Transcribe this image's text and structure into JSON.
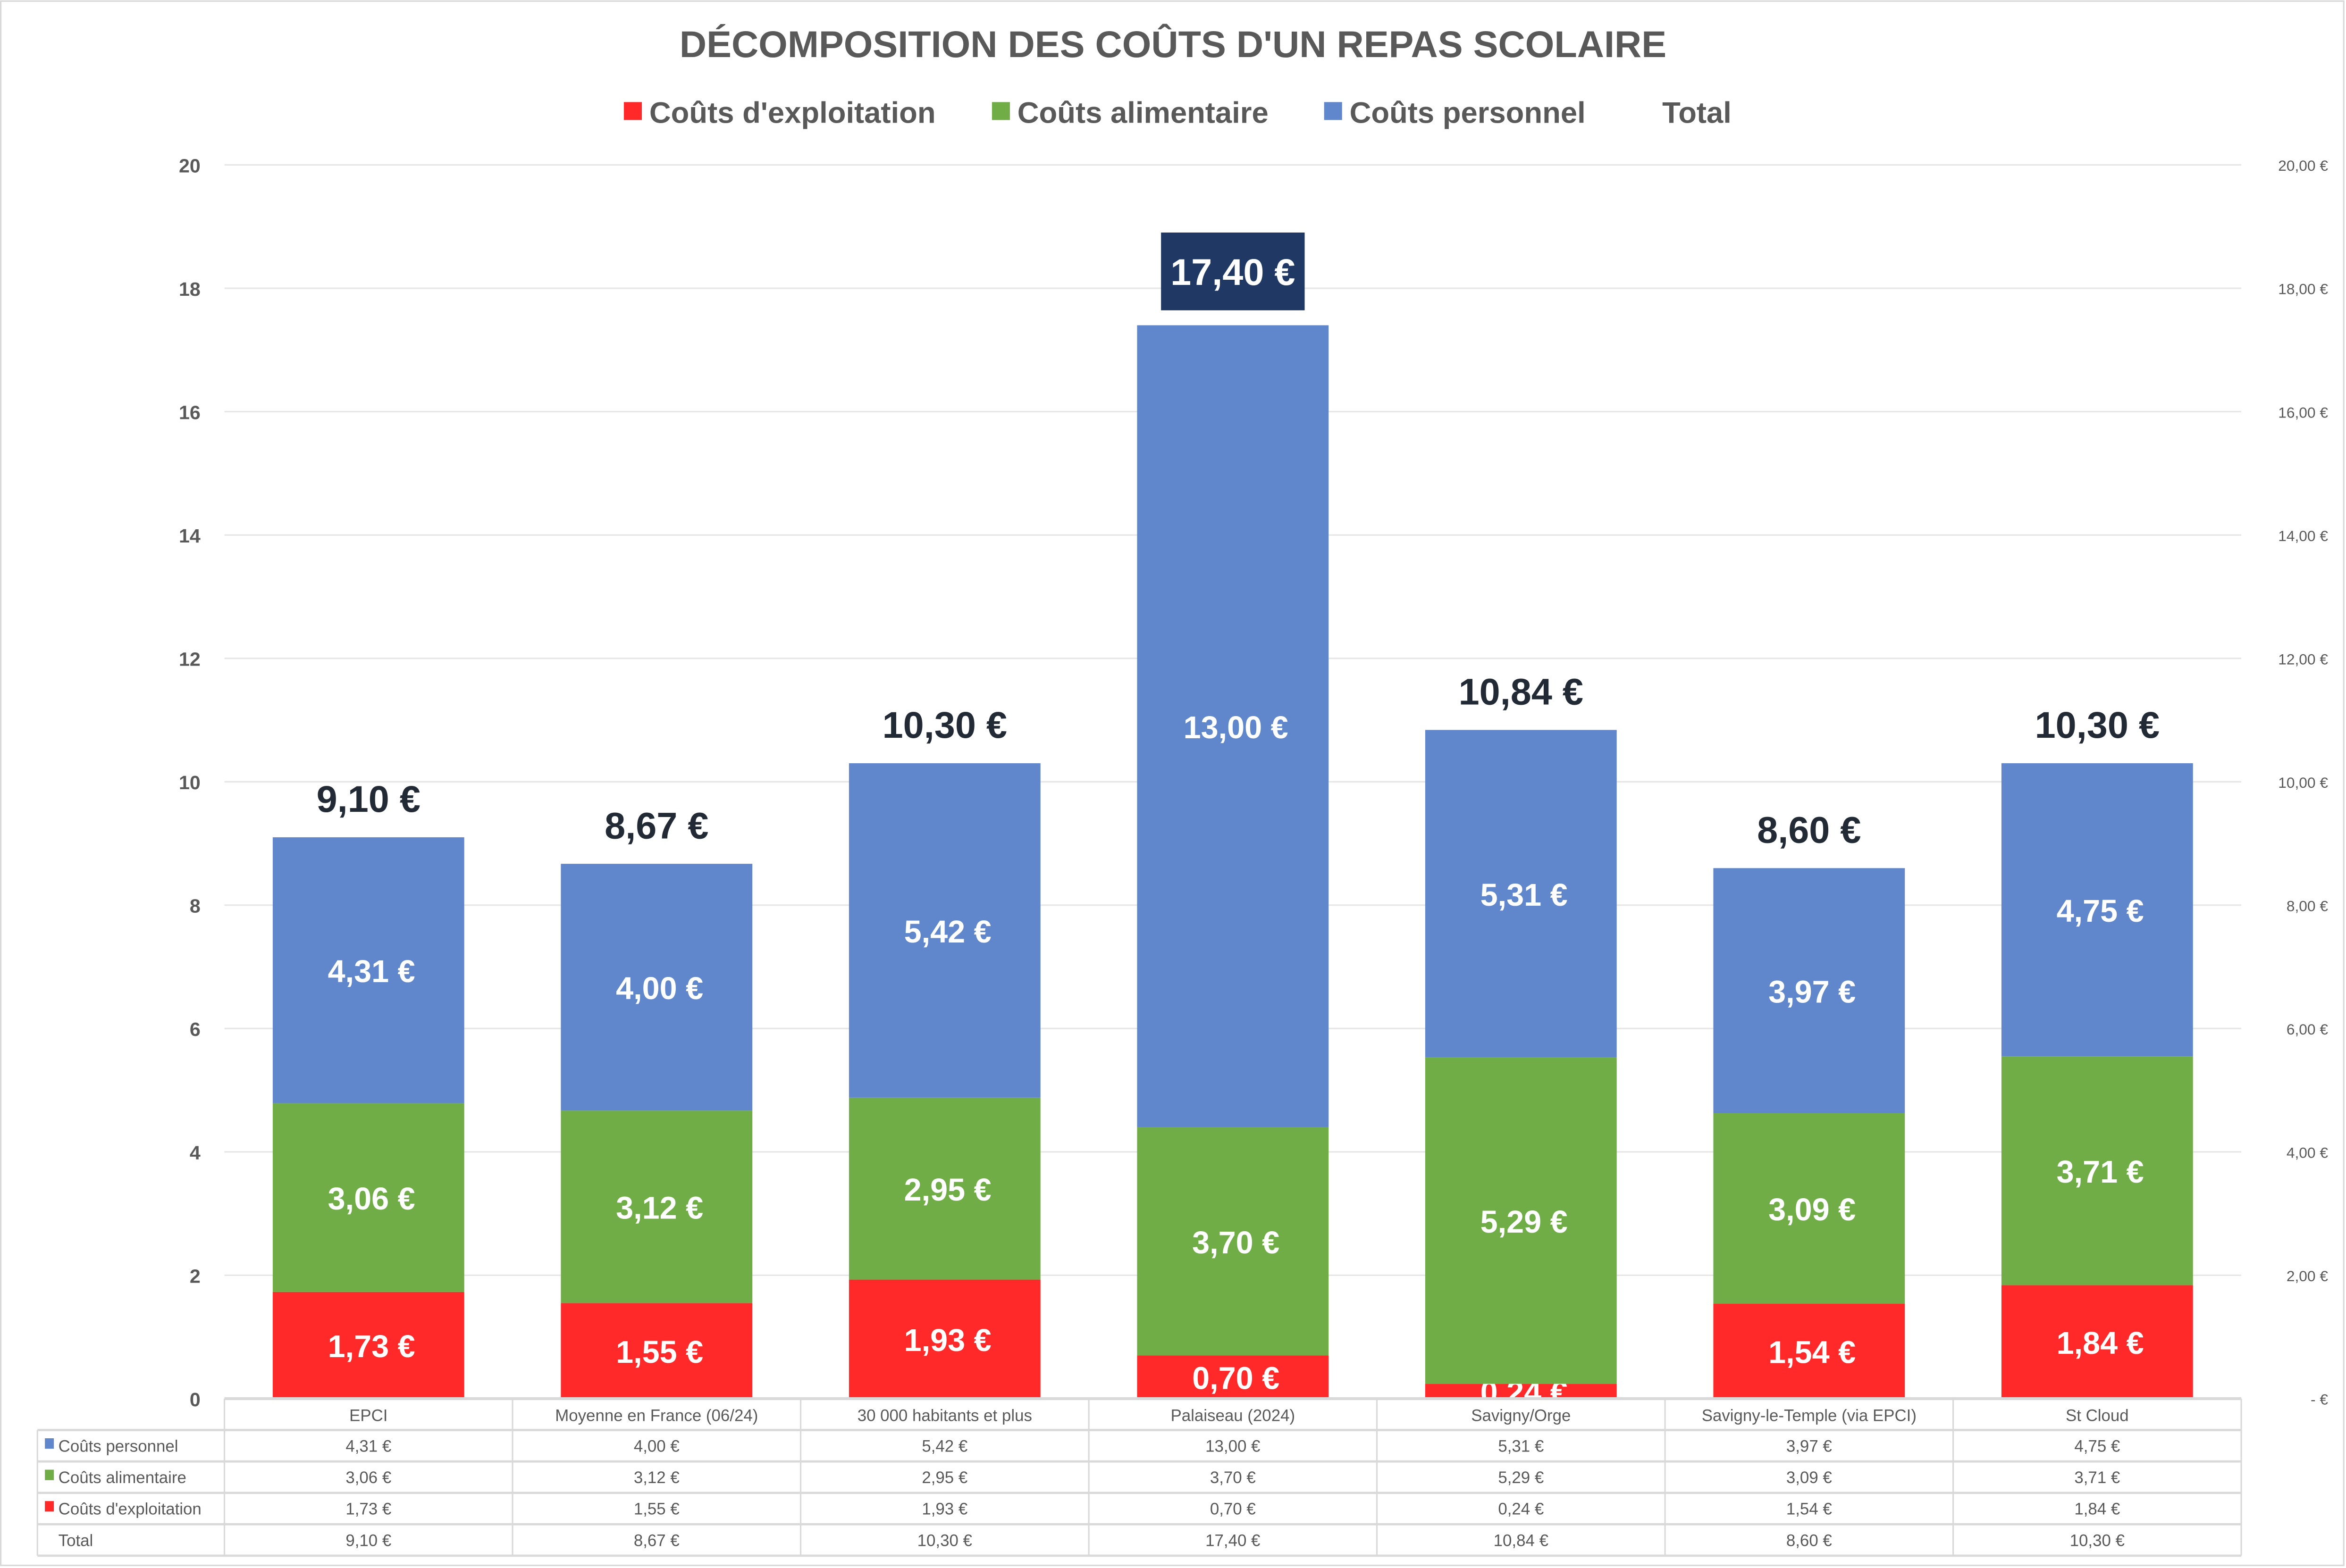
{
  "chart_data": {
    "type": "bar",
    "stacked": true,
    "title": "DÉCOMPOSITION DES COÛTS D'UN REPAS SCOLAIRE",
    "categories": [
      "EPCI",
      "Moyenne en France (06/24)",
      "30 000 habitants et plus",
      "Palaiseau (2024)",
      "Savigny/Orge",
      "Savigny-le-Temple (via EPCI)",
      "St Cloud"
    ],
    "series": [
      {
        "name": "Coûts d'exploitation",
        "color": "#ff2929",
        "values": [
          1.73,
          1.55,
          1.93,
          0.7,
          0.24,
          1.54,
          1.84
        ],
        "labels": [
          "1,73 €",
          "1,55 €",
          "1,93 €",
          "0,70 €",
          "0,24 €",
          "1,54 €",
          "1,84 €"
        ]
      },
      {
        "name": "Coûts alimentaire",
        "color": "#70ad47",
        "values": [
          3.06,
          3.12,
          2.95,
          3.7,
          5.29,
          3.09,
          3.71
        ],
        "labels": [
          "3,06 €",
          "3,12 €",
          "2,95 €",
          "3,70 €",
          "5,29 €",
          "3,09 €",
          "3,71 €"
        ]
      },
      {
        "name": "Coûts personnel",
        "color": "#6086cc",
        "values": [
          4.31,
          4.0,
          5.42,
          13.0,
          5.31,
          3.97,
          4.75
        ],
        "labels": [
          "4,31 €",
          "4,00 €",
          "5,42 €",
          "13,00 €",
          "5,31 €",
          "3,97 €",
          "4,75 €"
        ]
      }
    ],
    "total": {
      "name": "Total",
      "values": [
        9.1,
        8.67,
        10.3,
        17.4,
        10.84,
        8.6,
        10.3
      ],
      "labels": [
        "9,10 €",
        "8,67 €",
        "10,30 €",
        "17,40 €",
        "10,84 €",
        "8,60 €",
        "10,30 €"
      ],
      "highlight_index": 3,
      "highlight_color": "#1f3864"
    },
    "ylim": [
      0,
      20
    ],
    "y_ticks": [
      "0",
      "2",
      "4",
      "6",
      "8",
      "10",
      "12",
      "14",
      "16",
      "18",
      "20"
    ],
    "y2_ticks": [
      "-   €",
      "2,00 €",
      "4,00 €",
      "6,00 €",
      "8,00 €",
      "10,00 €",
      "12,00 €",
      "14,00 €",
      "16,00 €",
      "18,00 €",
      "20,00 €"
    ],
    "grid": true,
    "legend_position": "top",
    "data_table": {
      "row_order": [
        "Coûts personnel",
        "Coûts alimentaire",
        "Coûts d'exploitation",
        "Total"
      ]
    }
  }
}
